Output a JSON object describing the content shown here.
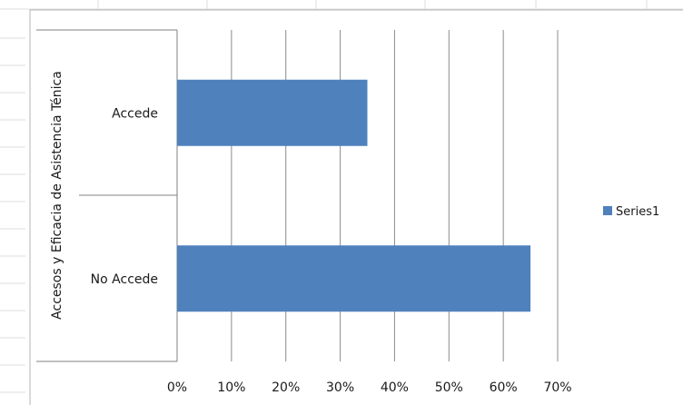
{
  "chart_data": {
    "type": "bar",
    "orientation": "horizontal",
    "categories": [
      "Accede",
      "No Accede"
    ],
    "series": [
      {
        "name": "Series1",
        "values": [
          0.35,
          0.65
        ],
        "color": "#4f81bd"
      }
    ],
    "xlim": [
      0,
      0.7
    ],
    "xticks": [
      "0%",
      "10%",
      "20%",
      "30%",
      "40%",
      "50%",
      "60%",
      "70%"
    ],
    "ylabel": "Accesos y Eficacia de Asistencia Ténica",
    "xlabel": "",
    "grid": true,
    "legend_position": "right"
  }
}
